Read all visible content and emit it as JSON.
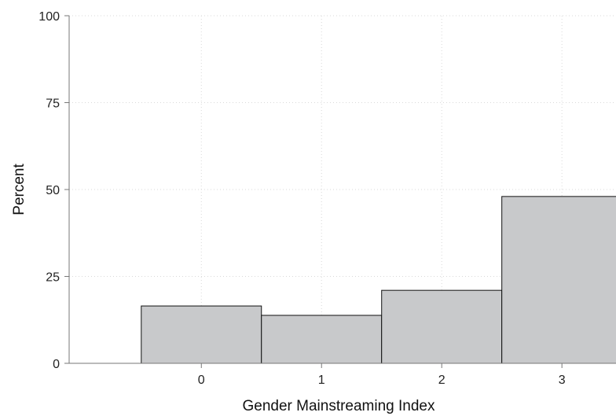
{
  "chart_data": {
    "type": "bar",
    "xlabel": "Gender Mainstreaming Index",
    "ylabel": "Percent",
    "categories": [
      "0",
      "1",
      "2",
      "3"
    ],
    "values": [
      16.5,
      13.8,
      21.0,
      48.0
    ],
    "ylim": [
      0,
      100
    ],
    "yticks": [
      0,
      25,
      50,
      75,
      100
    ],
    "xlim": [
      -1.1,
      3.45
    ],
    "grid": true,
    "legend": "none",
    "colors": {
      "bar_fill": "#c8c9cb",
      "bar_stroke": "#111111",
      "grid": "#d9d9d9",
      "axis": "#777777"
    }
  }
}
